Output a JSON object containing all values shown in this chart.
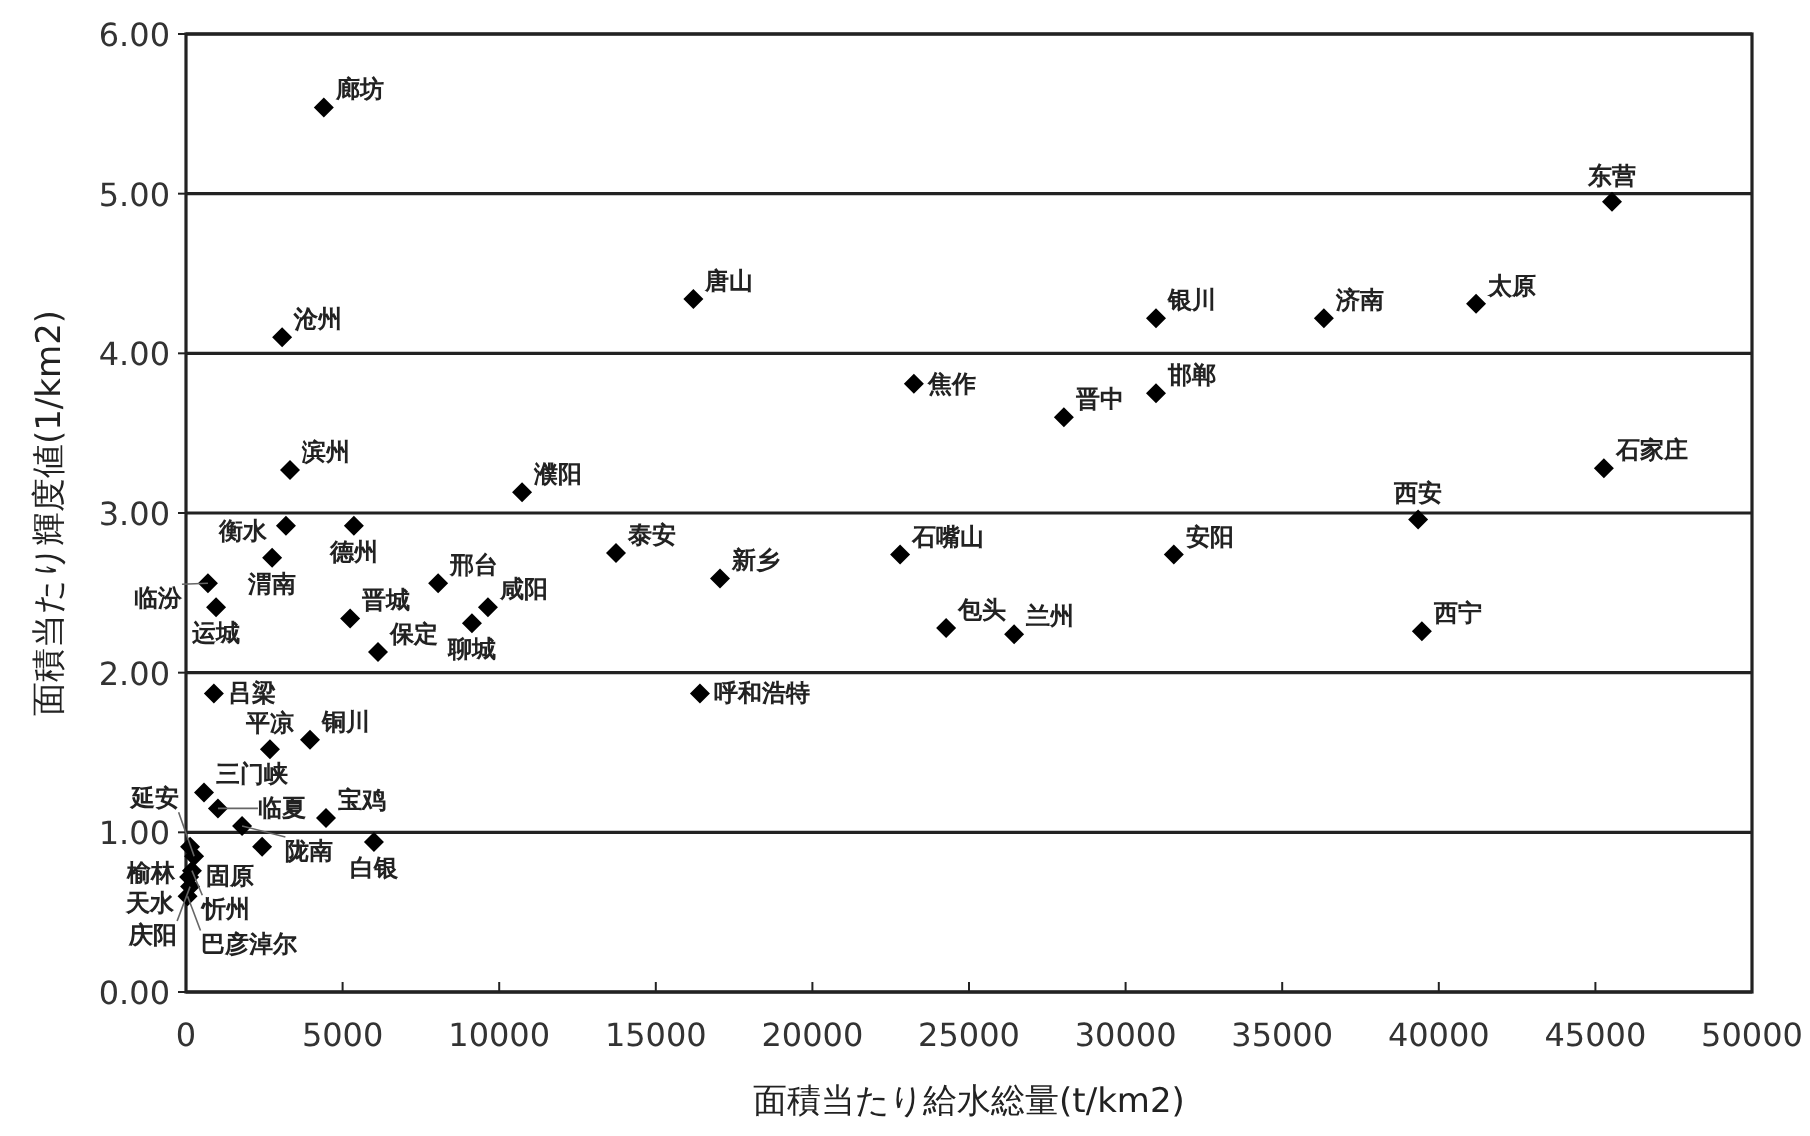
{
  "chart_data": {
    "type": "scatter",
    "xlabel": "面積当たり給水総量(t/km2)",
    "ylabel": "面積当たり輝度値(1/km2)",
    "xlim": [
      0,
      50000
    ],
    "xticks": [
      0,
      5000,
      10000,
      15000,
      20000,
      25000,
      30000,
      35000,
      40000,
      45000,
      50000
    ],
    "ylim": [
      0,
      6
    ],
    "yticks": [
      {
        "value": 0,
        "label": "0.00"
      },
      {
        "value": 1,
        "label": "1.00"
      },
      {
        "value": 2,
        "label": "2.00"
      },
      {
        "value": 3,
        "label": "3.00"
      },
      {
        "value": 4,
        "label": "4.00"
      },
      {
        "value": 5,
        "label": "5.00"
      },
      {
        "value": 6,
        "label": "6.00"
      }
    ],
    "grid": "y",
    "marker": "diamond",
    "series": [
      {
        "color": "#000000",
        "x": [
          4400,
          16200,
          3070,
          23240,
          3320,
          10730,
          45530,
          30970,
          36330,
          41190,
          30970,
          28030,
          45270,
          39340,
          22800,
          31540,
          24270,
          26440,
          39460,
          3190,
          5360,
          13730,
          17050,
          2750,
          700,
          960,
          5240,
          8050,
          9640,
          9130,
          6130,
          890,
          16410,
          3960,
          575,
          1020,
          2680,
          1790,
          4470,
          2430,
          6000,
          130,
          260,
          190,
          100,
          130,
          50
        ],
        "values": [
          5.54,
          4.34,
          4.1,
          3.81,
          3.27,
          3.13,
          4.95,
          4.22,
          4.22,
          4.31,
          3.75,
          3.6,
          3.28,
          2.96,
          2.74,
          2.74,
          2.28,
          2.24,
          2.26,
          2.92,
          2.92,
          2.75,
          2.59,
          2.72,
          2.56,
          2.41,
          2.34,
          2.56,
          2.41,
          2.31,
          2.13,
          1.87,
          1.87,
          1.58,
          1.25,
          1.15,
          1.52,
          1.04,
          1.09,
          0.91,
          0.94,
          0.91,
          0.85,
          0.76,
          0.72,
          0.66,
          0.6
        ]
      }
    ],
    "annotations": [
      {
        "text": "廊坊",
        "x": 4400,
        "y": 5.54
      },
      {
        "text": "唐山",
        "x": 16200,
        "y": 4.34
      },
      {
        "text": "沧州",
        "x": 3070,
        "y": 4.1
      },
      {
        "text": "焦作",
        "x": 23240,
        "y": 3.81
      },
      {
        "text": "滨州",
        "x": 3320,
        "y": 3.27
      },
      {
        "text": "濮阳",
        "x": 10730,
        "y": 3.13
      },
      {
        "text": "东营",
        "x": 45530,
        "y": 4.95
      },
      {
        "text": "银川",
        "x": 30970,
        "y": 4.22
      },
      {
        "text": "济南",
        "x": 36330,
        "y": 4.22
      },
      {
        "text": "太原",
        "x": 41190,
        "y": 4.31
      },
      {
        "text": "邯郸",
        "x": 30970,
        "y": 3.75
      },
      {
        "text": "晋中",
        "x": 28030,
        "y": 3.6
      },
      {
        "text": "石家庄",
        "x": 45270,
        "y": 3.28
      },
      {
        "text": "西安",
        "x": 39340,
        "y": 2.96
      },
      {
        "text": "石嘴山",
        "x": 22800,
        "y": 2.74
      },
      {
        "text": "安阳",
        "x": 31540,
        "y": 2.74
      },
      {
        "text": "包头",
        "x": 24270,
        "y": 2.28
      },
      {
        "text": "兰州",
        "x": 26440,
        "y": 2.24
      },
      {
        "text": "西宁",
        "x": 39460,
        "y": 2.26
      },
      {
        "text": "衡水",
        "x": 3190,
        "y": 2.92
      },
      {
        "text": "德州",
        "x": 5360,
        "y": 2.92
      },
      {
        "text": "泰安",
        "x": 13730,
        "y": 2.75
      },
      {
        "text": "新乡",
        "x": 17050,
        "y": 2.59
      },
      {
        "text": "渭南",
        "x": 2750,
        "y": 2.72
      },
      {
        "text": "临汾",
        "x": 700,
        "y": 2.56
      },
      {
        "text": "运城",
        "x": 960,
        "y": 2.41
      },
      {
        "text": "晋城",
        "x": 5240,
        "y": 2.34
      },
      {
        "text": "邢台",
        "x": 8050,
        "y": 2.56
      },
      {
        "text": "咸阳",
        "x": 9640,
        "y": 2.41
      },
      {
        "text": "聊城",
        "x": 9130,
        "y": 2.31
      },
      {
        "text": "保定",
        "x": 6130,
        "y": 2.13
      },
      {
        "text": "吕梁",
        "x": 890,
        "y": 1.87
      },
      {
        "text": "呼和浩特",
        "x": 16410,
        "y": 1.87
      },
      {
        "text": "铜川",
        "x": 3960,
        "y": 1.58
      },
      {
        "text": "三门峡",
        "x": 575,
        "y": 1.25
      },
      {
        "text": "临夏",
        "x": 1020,
        "y": 1.15
      },
      {
        "text": "平凉",
        "x": 2680,
        "y": 1.52
      },
      {
        "text": "陇南",
        "x": 1790,
        "y": 1.04
      },
      {
        "text": "宝鸡",
        "x": 4470,
        "y": 1.09
      },
      {
        "text": "固原",
        "x": 2430,
        "y": 0.91
      },
      {
        "text": "白银",
        "x": 6000,
        "y": 0.94
      },
      {
        "text": "榆林",
        "x": 130,
        "y": 0.91
      },
      {
        "text": "延安",
        "x": 260,
        "y": 0.85
      },
      {
        "text": "忻州",
        "x": 190,
        "y": 0.76
      },
      {
        "text": "天水",
        "x": 100,
        "y": 0.72
      },
      {
        "text": "庆阳",
        "x": 130,
        "y": 0.66
      },
      {
        "text": "巴彦淖尔",
        "x": 50,
        "y": 0.6
      }
    ]
  }
}
